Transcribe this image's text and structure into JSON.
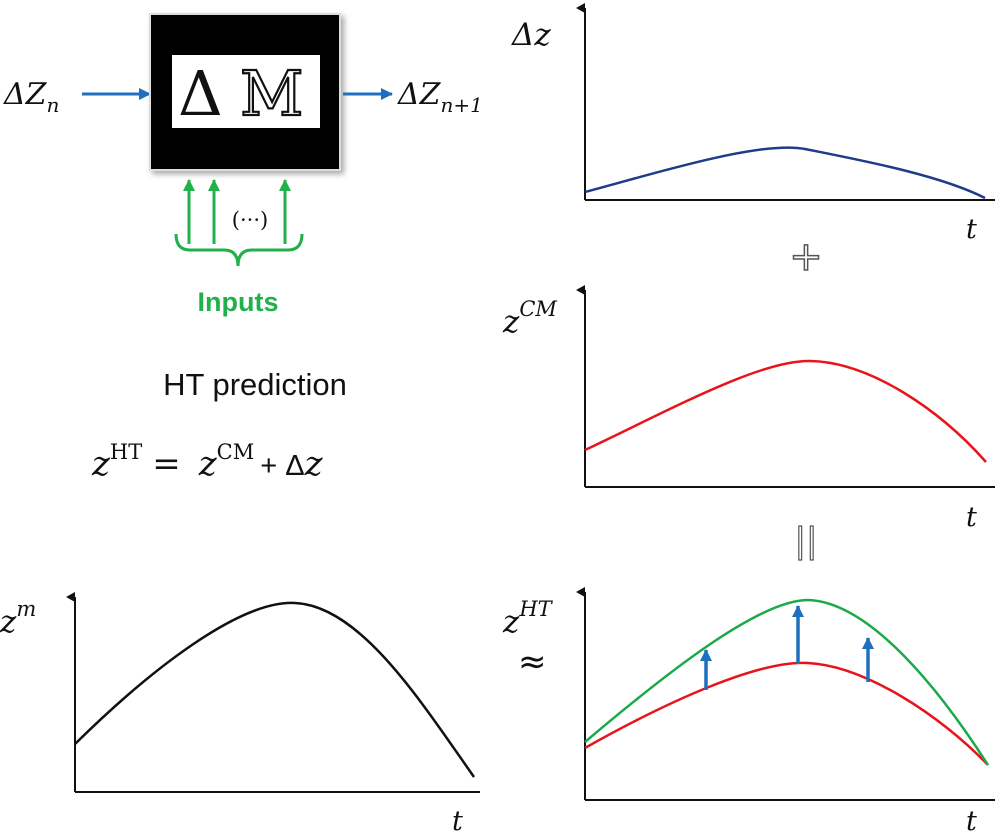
{
  "block": {
    "symbol_delta": "Δ",
    "symbol_m": "M",
    "input_sym": "ΔZ",
    "input_sub": "n",
    "output_sym": "ΔZ",
    "output_sub": "n+1",
    "ellipsis": "(···)",
    "inputs_label": "Inputs"
  },
  "formula": {
    "title": "HT prediction",
    "lhs": "z",
    "lhs_sup": "HT",
    "eq": "=",
    "term1": "z",
    "term1_sup": "CM",
    "plus": "+ Δ",
    "term2": "z"
  },
  "plots": {
    "dz": {
      "ylabel": "Δz",
      "xlabel": "t"
    },
    "zcm": {
      "ylabel_base": "z",
      "ylabel_sup": "CM",
      "xlabel": "t"
    },
    "zm": {
      "ylabel_base": "z",
      "ylabel_sup": "m",
      "xlabel": "t"
    },
    "zht": {
      "ylabel_base": "z",
      "ylabel_sup": "HT",
      "xlabel": "t"
    }
  },
  "operators": {
    "plus": "+",
    "equals": "||",
    "approx": "≈"
  },
  "colors": {
    "blue": "#1f6fbf",
    "dark_blue": "#1f3c88",
    "red": "#e8141b",
    "green": "#1aaa4a",
    "inputs_green": "#22b04b",
    "black": "#111111"
  }
}
